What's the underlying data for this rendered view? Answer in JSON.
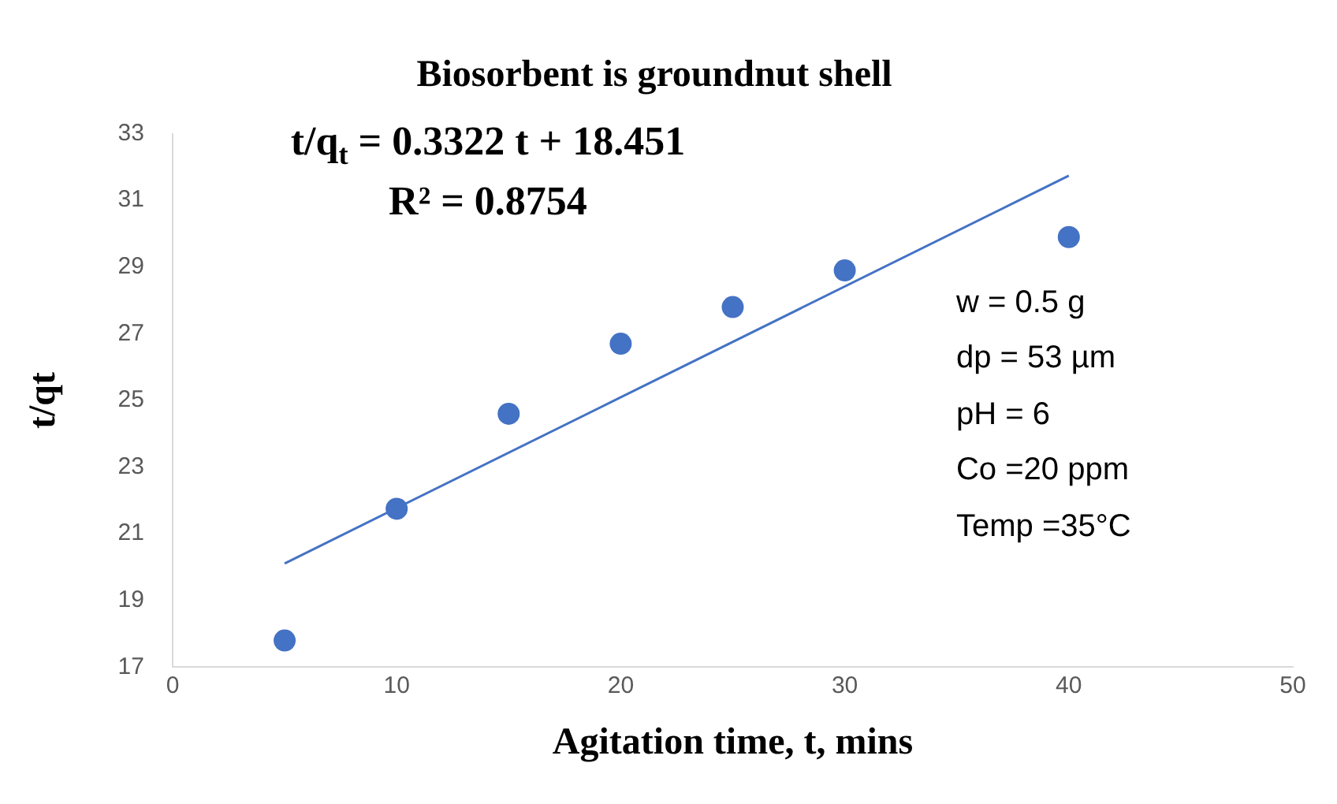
{
  "chart_data": {
    "type": "scatter",
    "title": "Biosorbent is groundnut shell",
    "xlabel": "Agitation time, t, mins",
    "ylabel": "t/qt",
    "xlim": [
      0,
      50
    ],
    "xticks": [
      0,
      10,
      20,
      30,
      40,
      50
    ],
    "ylim": [
      17,
      33
    ],
    "yticks": [
      17,
      19,
      21,
      23,
      25,
      27,
      29,
      31,
      33
    ],
    "grid": false,
    "legend": false,
    "marker": "circle",
    "series": [
      {
        "type": "scatter",
        "color": "#4472c4",
        "x": [
          5,
          10,
          15,
          20,
          25,
          30,
          40
        ],
        "values": [
          17.8,
          21.75,
          24.6,
          26.7,
          27.8,
          28.9,
          29.9
        ]
      },
      {
        "type": "line",
        "color": "#4472c4",
        "x": [
          5,
          40
        ],
        "values": [
          20.11,
          31.74
        ],
        "marker": "none"
      }
    ],
    "annotations": [
      "t/q$_{t}$ = 0.3322 t + 18.451",
      "R² = 0.8754",
      "w = 0.5 g",
      "dp = 53 µm",
      "pH = 6",
      "Co =20 ppm",
      "Temp =35°C"
    ]
  }
}
